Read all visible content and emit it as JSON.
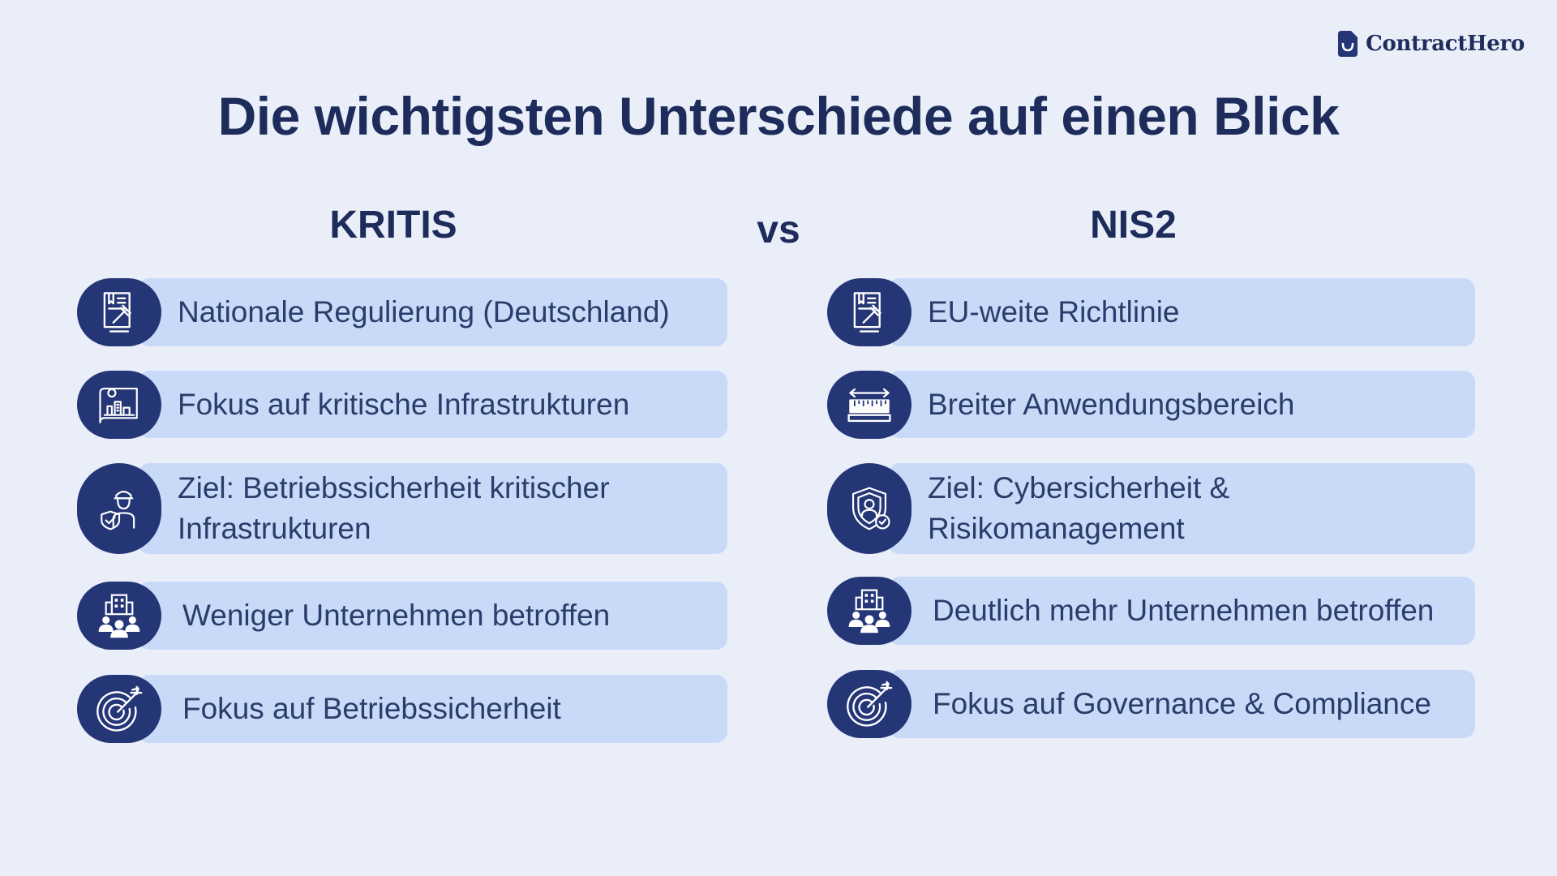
{
  "brand": {
    "name": "ContractHero",
    "logo_icon": "document-logo-icon"
  },
  "title": "Die wichtigsten Unterschiede auf einen Blick",
  "vs_label": "vs",
  "colors": {
    "background": "#e9eef9",
    "pill": "#c9daf8",
    "icon_circle": "#253677",
    "heading": "#1d2c5b",
    "text": "#2a3c6b"
  },
  "columns": [
    {
      "heading": "KRITIS",
      "items": [
        {
          "icon": "law-book-gavel-icon",
          "text": "Nationale Regulierung (Deutschland)"
        },
        {
          "icon": "infrastructure-blueprint-icon",
          "text": "Fokus auf kritische Infrastrukturen"
        },
        {
          "icon": "worker-shield-icon",
          "text": "Ziel: Betriebssicherheit kritischer Infrastrukturen"
        },
        {
          "icon": "building-people-icon",
          "text": "Weniger Unternehmen betroffen"
        },
        {
          "icon": "target-arrow-icon",
          "text": "Fokus auf Betriebssicherheit"
        }
      ]
    },
    {
      "heading": "NIS2",
      "items": [
        {
          "icon": "law-book-gavel-icon",
          "text": "EU-weite Richtlinie"
        },
        {
          "icon": "ruler-measure-icon",
          "text": "Breiter Anwendungsbereich"
        },
        {
          "icon": "security-shield-user-icon",
          "text": "Ziel: Cybersicherheit & Risikomanagement"
        },
        {
          "icon": "building-people-icon",
          "text": "Deutlich mehr Unternehmen betroffen"
        },
        {
          "icon": "target-arrow-icon",
          "text": "Fokus auf Governance & Compliance"
        }
      ]
    }
  ]
}
